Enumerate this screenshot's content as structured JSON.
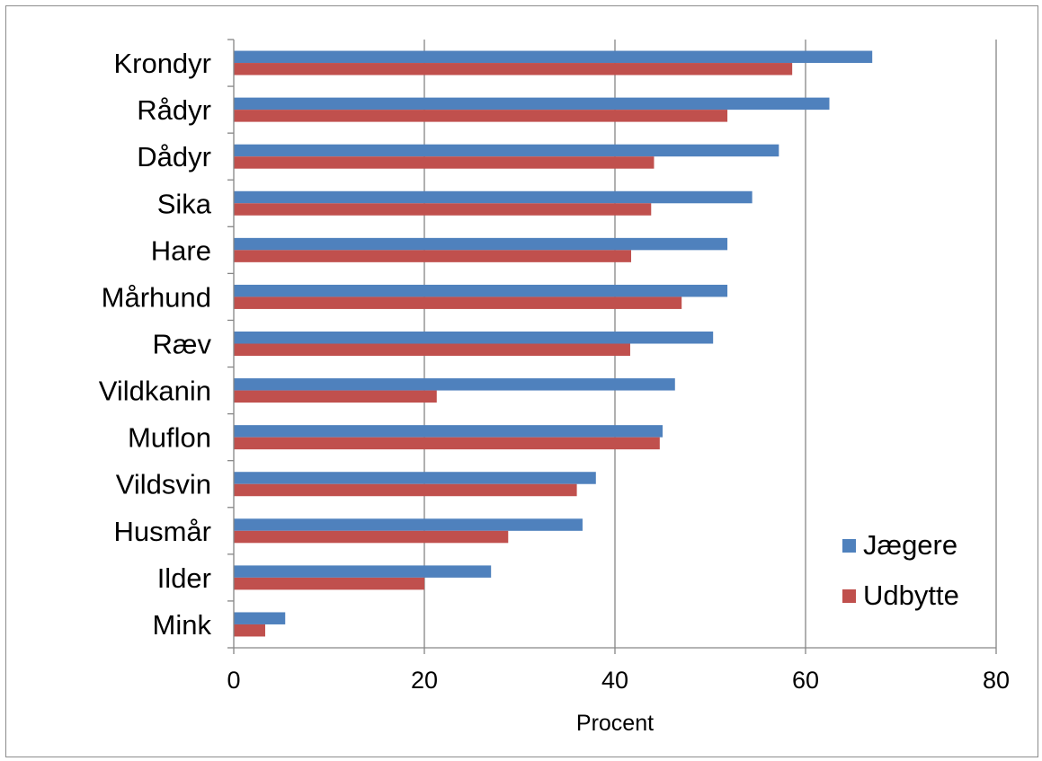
{
  "chart_data": {
    "type": "bar",
    "orientation": "horizontal",
    "title": "",
    "xlabel": "Procent",
    "ylabel": "",
    "xlim": [
      0,
      80
    ],
    "xticks": [
      0,
      20,
      40,
      60,
      80
    ],
    "grid": true,
    "legend_position": "bottom-right",
    "categories": [
      "Krondyr",
      "Rådyr",
      "Dådyr",
      "Sika",
      "Hare",
      "Mårhund",
      "Ræv",
      "Vildkanin",
      "Muflon",
      "Vildsvin",
      "Husmår",
      "Ilder",
      "Mink"
    ],
    "series": [
      {
        "name": "Jægere",
        "color": "#4f81bd",
        "values": [
          67.0,
          62.5,
          57.2,
          54.4,
          51.8,
          51.8,
          50.3,
          46.3,
          45.0,
          38.0,
          36.6,
          27.0,
          5.4
        ]
      },
      {
        "name": "Udbytte",
        "color": "#c0504d",
        "values": [
          58.6,
          51.8,
          44.1,
          43.8,
          41.7,
          47.0,
          41.6,
          21.3,
          44.7,
          36.0,
          28.8,
          20.0,
          3.3
        ]
      }
    ]
  }
}
